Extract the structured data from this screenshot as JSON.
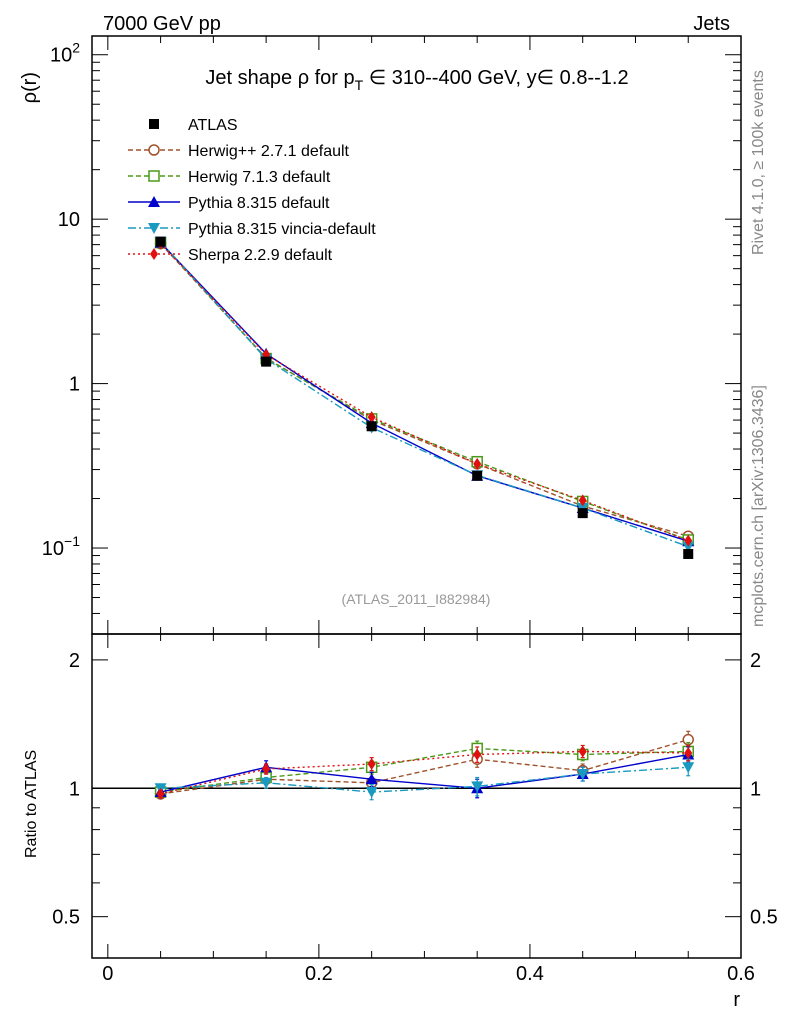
{
  "header": {
    "left": "7000 GeV pp",
    "right": "Jets"
  },
  "side_labels": {
    "rivet": "Rivet 4.1.0, ≥ 100k events",
    "mcplots": "mcplots.cern.ch [arXiv:1306.3436]"
  },
  "chart_data": [
    {
      "type": "line",
      "panel": "main",
      "title": "Jet shape ρ for p_T ∈ 310--400 GeV, y∈ 0.8--1.2",
      "title_parts": {
        "prefix": "Jet shape ρ for p",
        "sub": "T",
        "suffix": " ∈ 310--400 GeV, y∈ 0.8--1.2"
      },
      "ylabel": "ρ(r)",
      "xlabel": "r",
      "yscale": "log",
      "ylim": [
        0.03,
        130
      ],
      "xlim": [
        -0.015,
        0.6
      ],
      "x_ticks": [
        0,
        0.2,
        0.4,
        0.6
      ],
      "x_tick_labels": [
        "0",
        "0.2",
        "0.4",
        "0.6"
      ],
      "y_tick_labels": [
        {
          "value": 100,
          "base": "10",
          "exp": "2"
        },
        {
          "value": 10,
          "base": "10",
          "exp": ""
        },
        {
          "value": 1,
          "base": "1",
          "exp": ""
        },
        {
          "value": 0.1,
          "base": "10",
          "exp": "−1"
        }
      ],
      "watermark": "(ATLAS_2011_I882984)",
      "x": [
        0.05,
        0.15,
        0.25,
        0.35,
        0.45,
        0.55
      ],
      "series": [
        {
          "name": "ATLAS",
          "color": "#000000",
          "marker": "square-filled",
          "dash": "none",
          "values": [
            7.3,
            1.36,
            0.55,
            0.275,
            0.163,
            0.092
          ]
        },
        {
          "name": "Herwig++ 2.7.1 default",
          "color": "#a0522d",
          "marker": "circle-open",
          "dash": "5,3",
          "values": [
            7.1,
            1.43,
            0.6,
            0.325,
            0.18,
            0.118
          ]
        },
        {
          "name": "Herwig 7.1.3 default",
          "color": "#4a9a1a",
          "marker": "square-open",
          "dash": "5,3",
          "values": [
            7.2,
            1.42,
            0.61,
            0.335,
            0.192,
            0.112
          ]
        },
        {
          "name": "Pythia 8.315 default",
          "color": "#0000cc",
          "marker": "triangle-up",
          "dash": "none",
          "values": [
            7.2,
            1.52,
            0.575,
            0.275,
            0.175,
            0.11
          ]
        },
        {
          "name": "Pythia 8.315 vincia-default",
          "color": "#1a9ac0",
          "marker": "triangle-down",
          "dash": "8,3,2,3",
          "values": [
            7.3,
            1.41,
            0.54,
            0.277,
            0.175,
            0.102
          ]
        },
        {
          "name": "Sherpa 2.2.9 default",
          "color": "#e01010",
          "marker": "diamond",
          "dash": "2,3",
          "values": [
            7.1,
            1.5,
            0.625,
            0.325,
            0.195,
            0.111
          ]
        }
      ]
    },
    {
      "type": "line",
      "panel": "ratio",
      "ylabel": "Ratio to ATLAS",
      "yscale": "log",
      "ylim": [
        0.4,
        2.3
      ],
      "y_tick_labels": [
        "0.5",
        "1",
        "2"
      ],
      "reference_line": 1,
      "x": [
        0.05,
        0.15,
        0.25,
        0.35,
        0.45,
        0.55
      ],
      "series": [
        {
          "name": "Herwig++ 2.7.1 default",
          "values": [
            0.97,
            1.05,
            1.03,
            1.17,
            1.1,
            1.3
          ],
          "errors": [
            0.02,
            0.03,
            0.03,
            0.05,
            0.04,
            0.06
          ]
        },
        {
          "name": "Herwig 7.1.3 default",
          "values": [
            0.98,
            1.06,
            1.12,
            1.24,
            1.2,
            1.22
          ],
          "errors": [
            0.02,
            0.03,
            0.04,
            0.05,
            0.04,
            0.06
          ]
        },
        {
          "name": "Pythia 8.315 default",
          "values": [
            0.98,
            1.12,
            1.05,
            1.0,
            1.08,
            1.2
          ],
          "errors": [
            0.02,
            0.04,
            0.04,
            0.05,
            0.04,
            0.05
          ]
        },
        {
          "name": "Pythia 8.315 vincia-default",
          "values": [
            1.0,
            1.03,
            0.98,
            1.01,
            1.08,
            1.12
          ],
          "errors": [
            0.02,
            0.03,
            0.04,
            0.05,
            0.04,
            0.05
          ]
        },
        {
          "name": "Sherpa 2.2.9 default",
          "values": [
            0.97,
            1.11,
            1.14,
            1.2,
            1.22,
            1.21
          ],
          "errors": [
            0.02,
            0.03,
            0.04,
            0.05,
            0.04,
            0.05
          ]
        }
      ]
    }
  ]
}
